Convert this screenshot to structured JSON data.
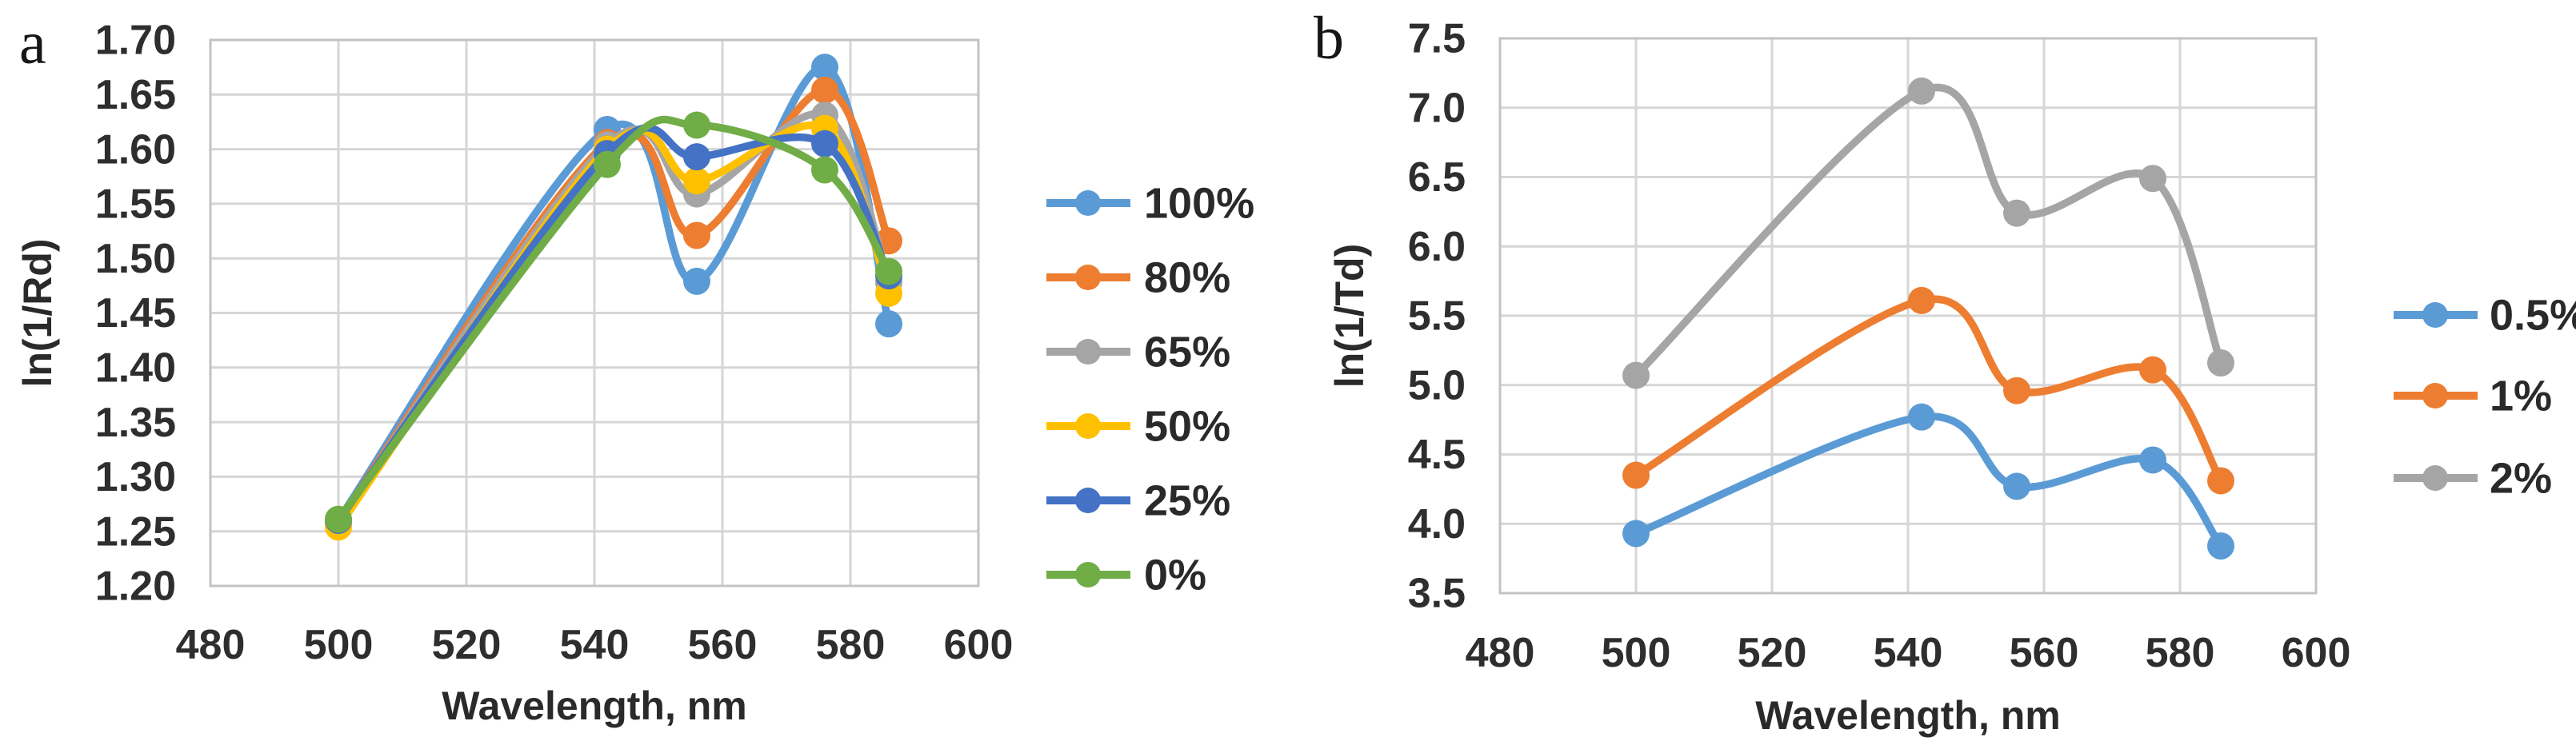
{
  "figure_description": "Two spectral line charts",
  "chart_data": [
    {
      "type": "line",
      "panel_label": "a",
      "xlabel": "Wavelength, nm",
      "ylabel": "ln(1/Rd)",
      "x": [
        500,
        542,
        556,
        576,
        586
      ],
      "series": [
        {
          "name": "100%",
          "color": "#5B9BD5",
          "values": [
            1.26,
            1.618,
            1.479,
            1.675,
            1.44
          ]
        },
        {
          "name": "80%",
          "color": "#ED7D31",
          "values": [
            1.259,
            1.606,
            1.521,
            1.654,
            1.516
          ]
        },
        {
          "name": "65%",
          "color": "#A5A5A5",
          "values": [
            1.258,
            1.604,
            1.559,
            1.631,
            1.478
          ]
        },
        {
          "name": "50%",
          "color": "#FFC000",
          "values": [
            1.254,
            1.6,
            1.571,
            1.619,
            1.468
          ]
        },
        {
          "name": "25%",
          "color": "#4472C4",
          "values": [
            1.26,
            1.596,
            1.593,
            1.605,
            1.484
          ]
        },
        {
          "name": "0%",
          "color": "#70AD47",
          "values": [
            1.261,
            1.586,
            1.622,
            1.581,
            1.488
          ]
        }
      ],
      "xlim": [
        480,
        600
      ],
      "ylim": [
        1.2,
        1.7
      ],
      "xticks": [
        "480",
        "500",
        "520",
        "540",
        "560",
        "580",
        "600"
      ],
      "yticks": [
        "1.70",
        "1.65",
        "1.60",
        "1.55",
        "1.50",
        "1.45",
        "1.40",
        "1.35",
        "1.30",
        "1.25",
        "1.20"
      ],
      "grid": true,
      "legend_position": "right",
      "legend_entries": [
        "100%",
        "80%",
        "65%",
        "50%",
        "25%",
        "0%"
      ]
    },
    {
      "type": "line",
      "panel_label": "b",
      "xlabel": "Wavelength, nm",
      "ylabel": "ln(1/Td)",
      "x": [
        500,
        542,
        556,
        576,
        586
      ],
      "series": [
        {
          "name": "0.5%",
          "color": "#5B9BD5",
          "values": [
            3.93,
            4.77,
            4.27,
            4.46,
            3.84
          ]
        },
        {
          "name": "1%",
          "color": "#ED7D31",
          "values": [
            4.35,
            5.61,
            4.96,
            5.11,
            4.31
          ]
        },
        {
          "name": "2%",
          "color": "#A5A5A5",
          "values": [
            5.07,
            7.12,
            6.24,
            6.49,
            5.16
          ]
        }
      ],
      "xlim": [
        480,
        600
      ],
      "ylim": [
        3.5,
        7.5
      ],
      "xticks": [
        "480",
        "500",
        "520",
        "540",
        "560",
        "580",
        "600"
      ],
      "yticks": [
        "7.5",
        "7.0",
        "6.5",
        "6.0",
        "5.5",
        "5.0",
        "4.5",
        "4.0",
        "3.5"
      ],
      "grid": true,
      "legend_position": "right",
      "legend_entries": [
        "0.5%",
        "1%",
        "2%"
      ]
    }
  ],
  "colors": {
    "gridline": "#d6d6d6",
    "plot_border": "#c3c3c3",
    "tick_text": "#2e2e2e"
  }
}
